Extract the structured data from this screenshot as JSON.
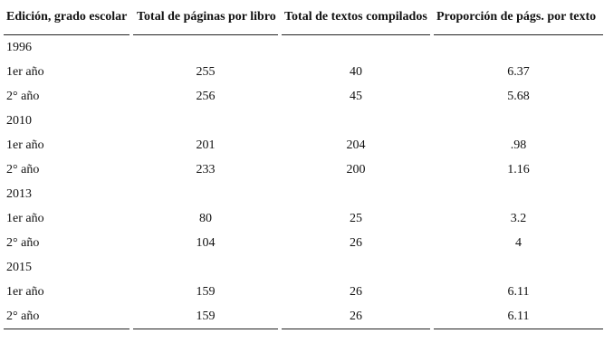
{
  "table": {
    "headers": [
      "Edición, grado escolar",
      "Total de páginas por libro",
      "Total de textos compilados",
      "Proporción de págs. por texto"
    ],
    "groups": [
      {
        "year": "1996",
        "rows": [
          {
            "label": "1er año",
            "paginas": "255",
            "textos": "40",
            "proporcion": "6.37"
          },
          {
            "label": "2° año",
            "paginas": "256",
            "textos": "45",
            "proporcion": "5.68"
          }
        ]
      },
      {
        "year": "2010",
        "rows": [
          {
            "label": "1er año",
            "paginas": "201",
            "textos": "204",
            "proporcion": ".98"
          },
          {
            "label": "2° año",
            "paginas": "233",
            "textos": "200",
            "proporcion": "1.16"
          }
        ]
      },
      {
        "year": "2013",
        "rows": [
          {
            "label": "1er año",
            "paginas": "80",
            "textos": "25",
            "proporcion": "3.2"
          },
          {
            "label": "2° año",
            "paginas": "104",
            "textos": "26",
            "proporcion": "4"
          }
        ]
      },
      {
        "year": "2015",
        "rows": [
          {
            "label": "1er año",
            "paginas": "159",
            "textos": "26",
            "proporcion": "6.11"
          },
          {
            "label": "2° año",
            "paginas": "159",
            "textos": "26",
            "proporcion": "6.11"
          }
        ]
      }
    ]
  }
}
